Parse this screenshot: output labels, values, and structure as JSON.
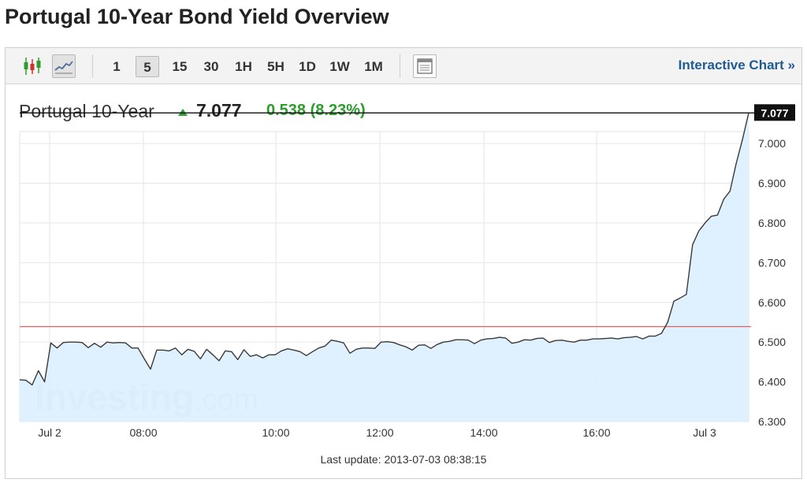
{
  "page": {
    "title": "Portugal 10-Year Bond Yield Overview"
  },
  "toolbar": {
    "intervals": [
      {
        "label": "1",
        "active": false
      },
      {
        "label": "5",
        "active": true
      },
      {
        "label": "15",
        "active": false
      },
      {
        "label": "30",
        "active": false
      },
      {
        "label": "1H",
        "active": false
      },
      {
        "label": "5H",
        "active": false
      },
      {
        "label": "1D",
        "active": false
      },
      {
        "label": "1W",
        "active": false
      },
      {
        "label": "1M",
        "active": false
      }
    ],
    "icons": [
      "candlestick-chart-icon",
      "line-chart-icon",
      "table-view-icon"
    ],
    "interactive_label": "Interactive Chart »"
  },
  "quote": {
    "name": "Portugal 10-Year",
    "price": "7.077",
    "change": "0.538 (8.23%)",
    "direction": "up",
    "up_color": "#2e9c2e"
  },
  "watermark": {
    "brand": "Investing",
    "suffix": ".com"
  },
  "last_update": "Last update: 2013-07-03 08:38:15",
  "chart_data": {
    "type": "area",
    "x_ticks": [
      "Jul 2",
      "08:00",
      "10:00",
      "12:00",
      "14:00",
      "16:00",
      "Jul 3"
    ],
    "y_ticks": [
      "7.000",
      "6.900",
      "6.800",
      "6.700",
      "6.600",
      "6.500",
      "6.400",
      "6.300"
    ],
    "y_tick_values": [
      7.0,
      6.9,
      6.8,
      6.7,
      6.6,
      6.5,
      6.4,
      6.3
    ],
    "ylim": [
      6.3,
      7.03
    ],
    "grid": true,
    "current_value": 7.077,
    "current_label": "7.077",
    "reference_line": 6.539,
    "line_color": "#3a3a3a",
    "fill_color": "#dcefff",
    "reference_color": "#e06060",
    "series": [
      {
        "values": [
          6.405,
          6.404,
          6.392,
          6.428,
          6.4,
          6.498,
          6.485,
          6.499,
          6.5,
          6.5,
          6.499,
          6.486,
          6.497,
          6.487,
          6.5,
          6.498,
          6.499,
          6.498,
          6.485,
          6.485,
          6.458,
          6.432,
          6.48,
          6.48,
          6.478,
          6.485,
          6.468,
          6.482,
          6.477,
          6.458,
          6.482,
          6.468,
          6.453,
          6.478,
          6.476,
          6.456,
          6.481,
          6.464,
          6.468,
          6.46,
          6.468,
          6.468,
          6.478,
          6.483,
          6.48,
          6.476,
          6.466,
          6.476,
          6.485,
          6.49,
          6.505,
          6.502,
          6.498,
          6.472,
          6.482,
          6.485,
          6.485,
          6.484,
          6.5,
          6.501,
          6.499,
          6.493,
          6.488,
          6.48,
          6.492,
          6.493,
          6.484,
          6.494,
          6.5,
          6.502,
          6.506,
          6.506,
          6.505,
          6.496,
          6.505,
          6.508,
          6.509,
          6.512,
          6.51,
          6.497,
          6.5,
          6.506,
          6.505,
          6.509,
          6.51,
          6.499,
          6.504,
          6.505,
          6.502,
          6.5,
          6.505,
          6.505,
          6.508,
          6.508,
          6.509,
          6.51,
          6.508,
          6.511,
          6.512,
          6.514,
          6.508,
          6.515,
          6.515,
          6.522,
          6.55,
          6.603,
          6.611,
          6.62,
          6.745,
          6.78,
          6.8,
          6.817,
          6.82,
          6.86,
          6.88,
          6.95,
          7.01,
          7.077
        ]
      }
    ]
  }
}
